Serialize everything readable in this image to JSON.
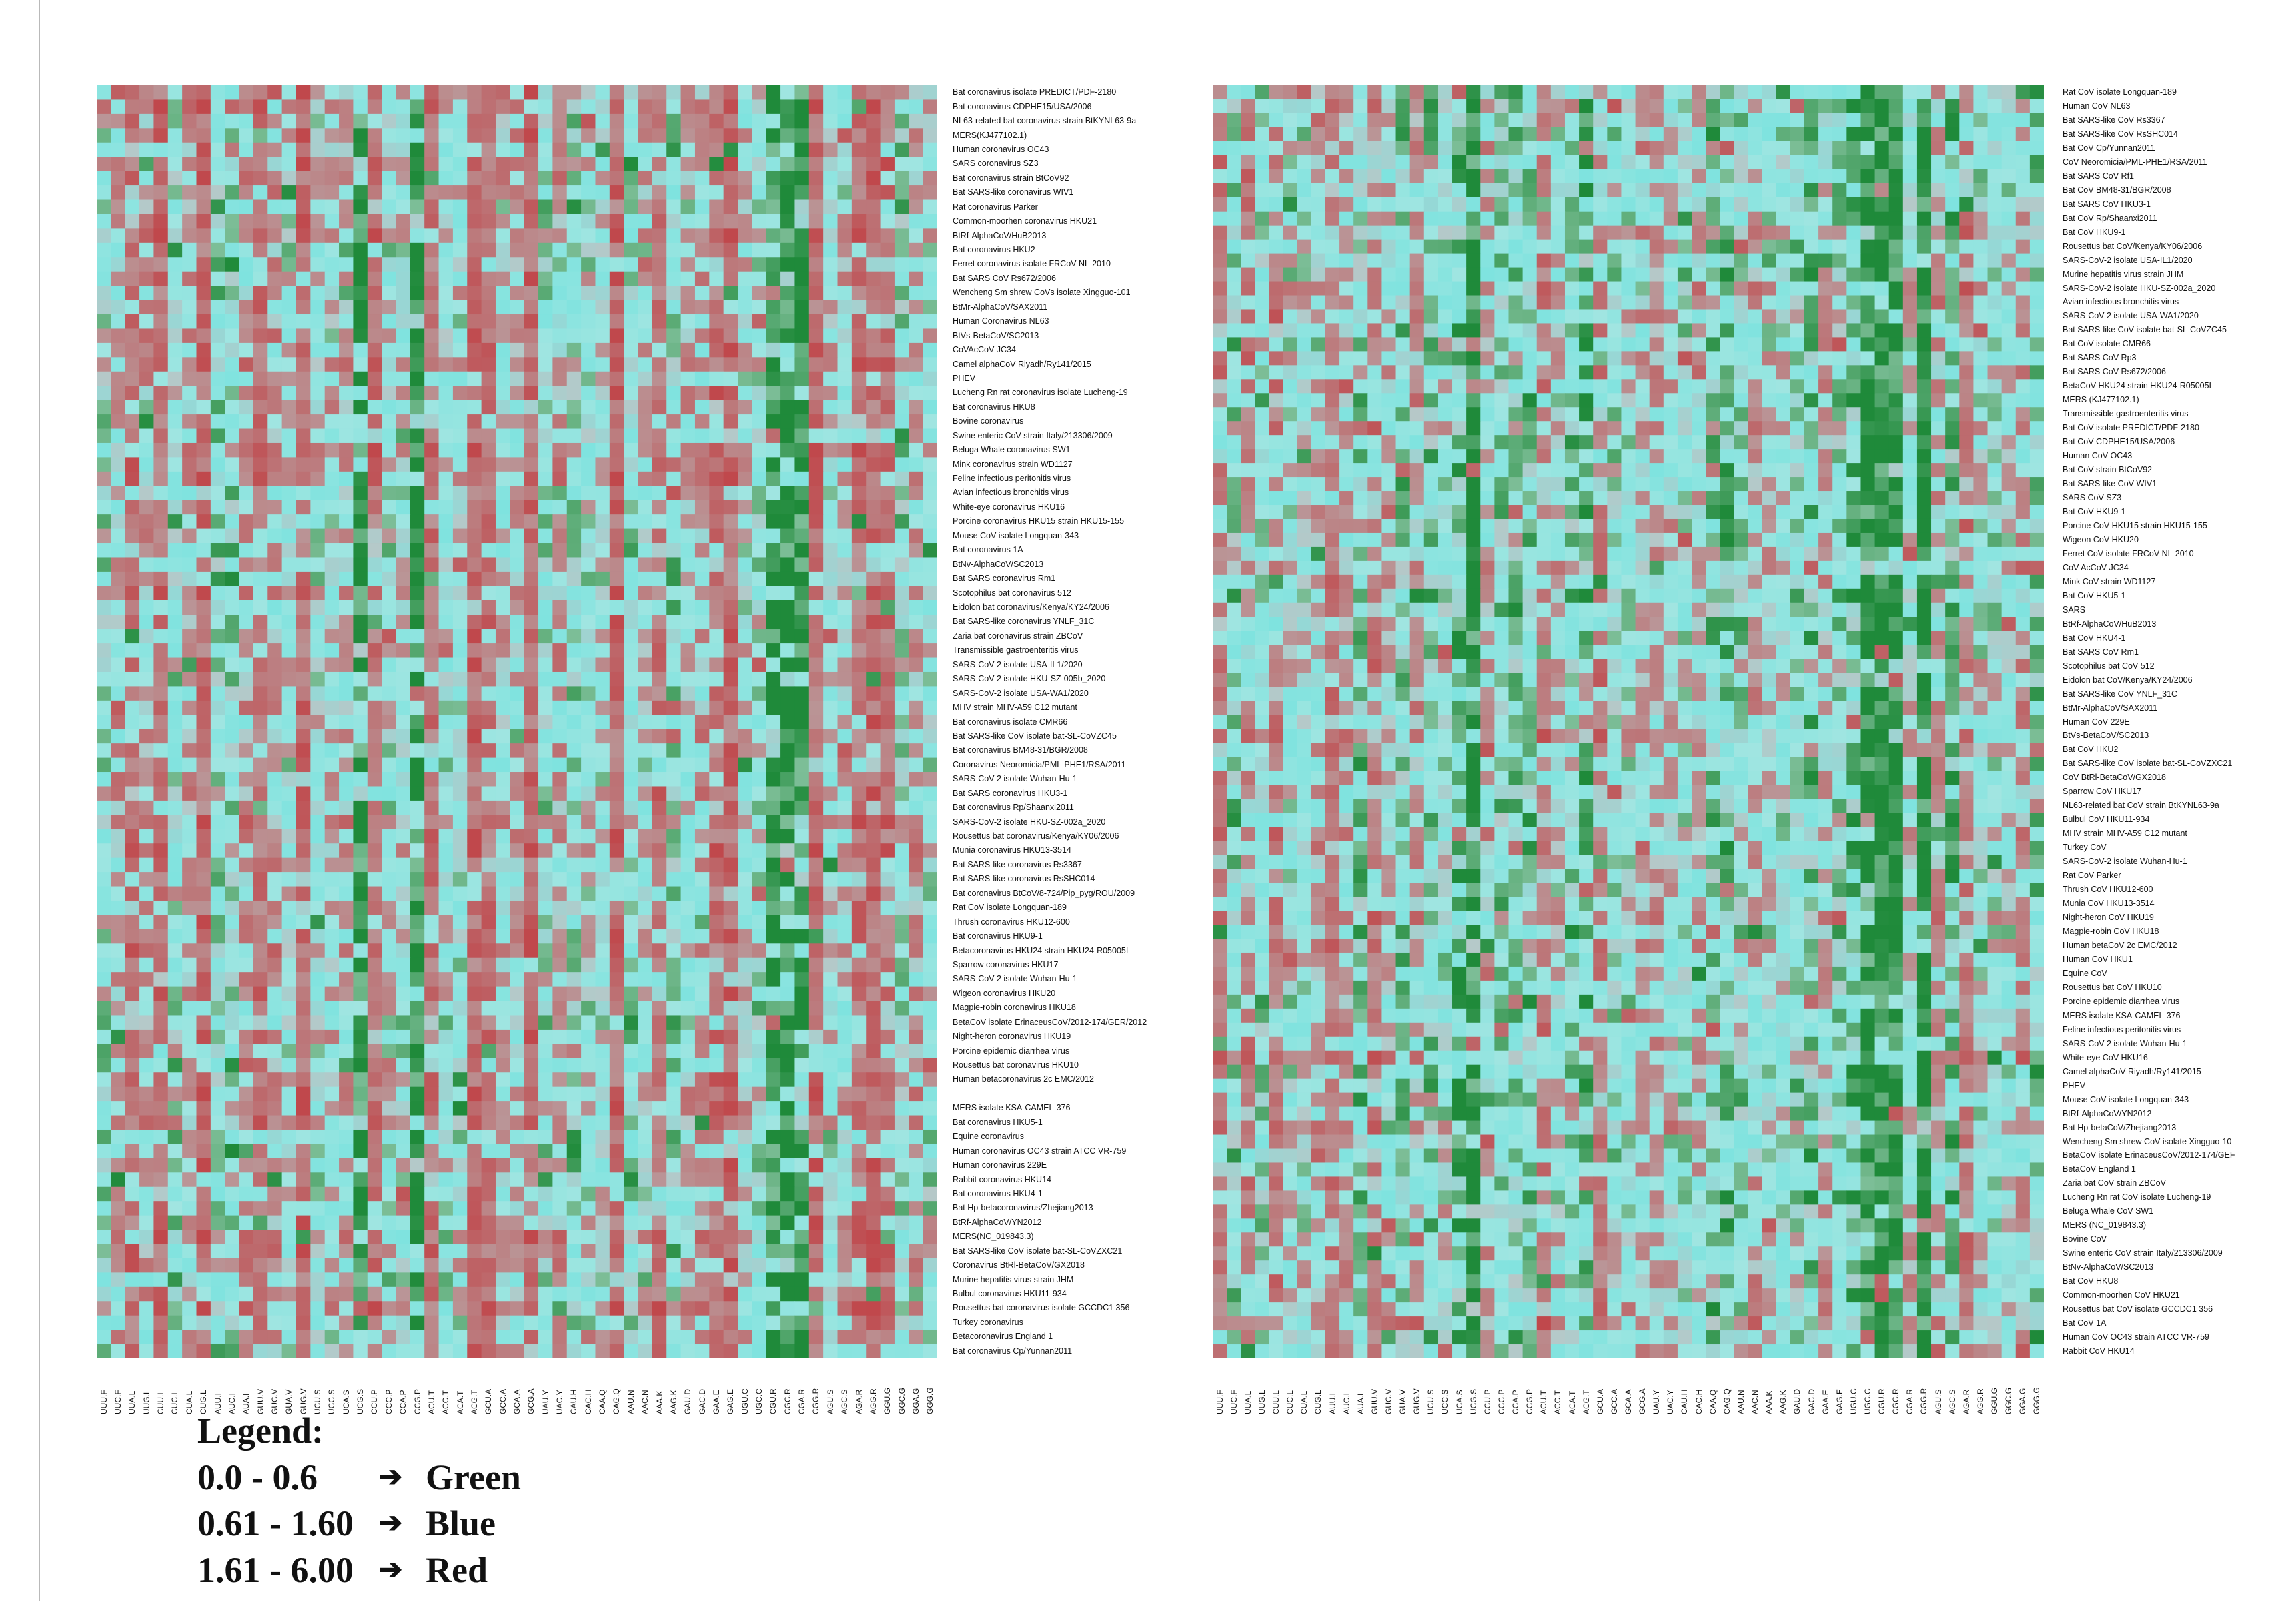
{
  "chart_data": [
    {
      "type": "heatmap",
      "id": "left",
      "rows": [
        "Bat coronavirus isolate PREDICT/PDF-2180",
        "Bat coronavirus CDPHE15/USA/2006",
        "NL63-related bat coronavirus strain BtKYNL63-9a",
        " MERS(KJ477102.1)",
        "Human coronavirus OC43",
        "SARS coronavirus SZ3",
        "Bat coronavirus strain BtCoV92",
        "Bat SARS-like coronavirus WIV1",
        " Rat coronavirus Parker",
        "Common-moorhen coronavirus HKU21",
        "BtRf-AlphaCoV/HuB2013",
        "Bat coronavirus HKU2",
        "Ferret coronavirus isolate FRCoV-NL-2010",
        " Bat SARS CoV Rs672/2006",
        " Wencheng Sm shrew CoVs isolate Xingguo-101",
        "BtMr-AlphaCoV/SAX2011",
        " Human Coronavirus NL63",
        "BtVs-BetaCoV/SC2013",
        "CoVAcCoV-JC34",
        "Camel alphaCoV Riyadh/Ry141/2015",
        "PHEV",
        "Lucheng Rn rat coronavirus isolate Lucheng-19",
        "Bat coronavirus HKU8",
        " Bovine coronavirus",
        "Swine enteric CoV strain Italy/213306/2009",
        "Beluga Whale coronavirus SW1",
        " Mink coronavirus strain WD1127",
        "Feline infectious peritonitis virus",
        "Avian infectious bronchitis virus",
        " White-eye coronavirus HKU16",
        " Porcine coronavirus HKU15 strain HKU15-155",
        "Mouse CoV isolate Longquan-343",
        "Bat coronavirus 1A",
        " BtNv-AlphaCoV/SC2013",
        "Bat SARS coronavirus Rm1",
        "Scotophilus bat coronavirus 512",
        " Eidolon bat coronavirus/Kenya/KY24/2006",
        "Bat SARS-like coronavirus YNLF_31C",
        "Zaria bat coronavirus strain ZBCoV",
        "Transmissible gastroenteritis virus",
        "SARS-CoV-2 isolate USA-IL1/2020",
        "SARS-CoV-2 isolate  HKU-SZ-005b_2020",
        "SARS-CoV-2 isolate USA-WA1/2020",
        "MHV strain MHV-A59 C12 mutant",
        "Bat coronavirus isolate CMR66",
        "Bat SARS-like CoV isolate bat-SL-CoVZC45",
        " Bat coronavirus BM48-31/BGR/2008",
        "Coronavirus Neoromicia/PML-PHE1/RSA/2011",
        "SARS-CoV-2 isolate Wuhan-Hu-1",
        " Bat SARS coronavirus HKU3-1",
        "Bat coronavirus Rp/Shaanxi2011",
        "SARS-CoV-2 isolate HKU-SZ-002a_2020",
        "Rousettus bat coronavirus/Kenya/KY06/2006",
        " Munia coronavirus HKU13-3514",
        "Bat SARS-like coronavirus Rs3367",
        "Bat SARS-like coronavirus RsSHC014",
        "Bat coronavirus BtCoV/8-724/Pip_pyg/ROU/2009",
        "Rat CoV isolate Longquan-189",
        "Thrush coronavirus HKU12-600",
        "Bat coronavirus HKU9-1",
        "Betacoronavirus HKU24 strain HKU24-R05005I",
        "Sparrow coronavirus HKU17",
        "SARS-CoV-2  isolate Wuhan-Hu-1",
        " Wigeon coronavirus HKU20",
        " Magpie-robin coronavirus HKU18",
        "BetaCoV  isolate ErinaceusCoV/2012-174/GER/2012",
        "Night-heron coronavirus HKU19",
        " Porcine epidemic diarrhea virus",
        "Rousettus bat coronavirus HKU10",
        "Human betacoronavirus 2c EMC/2012",
        "",
        "MERS isolate KSA-CAMEL-376",
        " Bat coronavirus HKU5-1",
        "Equine coronavirus",
        "Human coronavirus OC43 strain ATCC VR-759",
        " Human coronavirus 229E",
        "Rabbit coronavirus HKU14",
        "Bat coronavirus HKU4-1",
        "Bat Hp-betacoronavirus/Zhejiang2013",
        " BtRf-AlphaCoV/YN2012",
        "MERS(NC_019843.3)",
        " Bat SARS-like CoV isolate bat-SL-CoVZXC21",
        "Coronavirus BtRl-BetaCoV/GX2018",
        "Murine hepatitis virus strain JHM",
        " Bulbul coronavirus HKU11-934",
        "Rousettus bat coronavirus isolate GCCDC1 356",
        "Turkey coronavirus",
        "Betacoronavirus England 1",
        "Bat coronavirus Cp/Yunnan2011"
      ],
      "columns": [
        "UUU.F",
        "UUC.F",
        "UUA.L",
        "UUG.L",
        "CUU.L",
        "CUC.L",
        "CUA.L",
        "CUG.L",
        "AUU.I",
        "AUC.I",
        "AUA.I",
        "GUU.V",
        "GUC.V",
        "GUA.V",
        "GUG.V",
        "UCU.S",
        "UCC.S",
        "UCA.S",
        "UCG.S",
        "CCU.P",
        "CCC.P",
        "CCA.P",
        "CCG.P",
        "ACU.T",
        "ACC.T",
        "ACA.T",
        "ACG.T",
        "GCU.A",
        "GCC.A",
        "GCA.A",
        "GCG.A",
        "UAU.Y",
        "UAC.Y",
        "CAU.H",
        "CAC.H",
        "CAA.Q",
        "CAG.Q",
        "AAU.N",
        "AAC.N",
        "AAA.K",
        "AAG.K",
        "GAU.D",
        "GAC.D",
        "GAA.E",
        "GAG.E",
        "UGU.C",
        "UGC.C",
        "CGU.R",
        "CGC.R",
        "CGA.R",
        "CGG.R",
        "AGU.S",
        "AGC.S",
        "AGA.R",
        "AGG.R",
        "GGU.G",
        "GGC.G",
        "GGA.G",
        "GGG.G"
      ],
      "values_note_scale": "RSCU"
    },
    {
      "type": "heatmap",
      "id": "right",
      "rows": [
        "Rat CoV isolate Longquan-189",
        " Human CoV NL63",
        "Bat SARS-like CoV Rs3367",
        "Bat SARS-like CoV RsSHC014",
        "Bat CoV Cp/Yunnan2011",
        "CoV Neoromicia/PML-PHE1/RSA/2011",
        " Bat SARS CoV Rf1",
        " Bat CoV BM48-31/BGR/2008",
        " Bat SARS CoV HKU3-1",
        " Bat CoV Rp/Shaanxi2011",
        "Bat CoV HKU9-1",
        " Rousettus bat CoV/Kenya/KY06/2006",
        " SARS-CoV-2 isolate USA-IL1/2020",
        "Murine hepatitis virus strain JHM",
        "SARS-CoV-2 isolate HKU-SZ-002a_2020",
        "Avian infectious bronchitis virus",
        "SARS-CoV-2 isolate USA-WA1/2020",
        "Bat SARS-like CoV isolate bat-SL-CoVZC45",
        "Bat CoV isolate CMR66",
        "Bat SARS CoV Rp3",
        " Bat SARS CoV Rs672/2006",
        "BetaCoV HKU24 strain HKU24-R05005I",
        " MERS (KJ477102.1)",
        "Transmissible gastroenteritis virus",
        "Bat CoV isolate PREDICT/PDF-2180",
        "Bat CoV CDPHE15/USA/2006",
        "Human CoV OC43",
        "Bat CoV strain BtCoV92",
        "Bat SARS-like CoV WIV1",
        "SARS CoV SZ3",
        "Bat CoV HKU9-1",
        " Porcine CoV HKU15 strain HKU15-155",
        " Wigeon CoV HKU20",
        "Ferret CoV isolate FRCoV-NL-2010",
        "CoV AcCoV-JC34",
        " Mink CoV strain WD1127",
        " Bat CoV HKU5-1",
        "SARS",
        "BtRf-AlphaCoV/HuB2013",
        "Bat CoV HKU4-1",
        "Bat SARS CoV Rm1",
        "Scotophilus bat CoV 512",
        " Eidolon bat CoV/Kenya/KY24/2006",
        "Bat SARS-like CoV YNLF_31C",
        "BtMr-AlphaCoV/SAX2011",
        " Human CoV 229E",
        "BtVs-BetaCoV/SC2013",
        "Bat CoV HKU2",
        " Bat SARS-like CoV isolate bat-SL-CoVZXC21",
        "CoV BtRl-BetaCoV/GX2018",
        "Sparrow CoV HKU17",
        "NL63-related bat CoV strain BtKYNL63-9a",
        " Bulbul CoV HKU11-934",
        "MHV strain MHV-A59 C12 mutant",
        "Turkey CoV",
        "SARS-CoV-2 isolate Wuhan-Hu-1",
        " Rat CoV Parker",
        "Thrush CoV HKU12-600",
        "Munia CoV HKU13-3514",
        "Night-heron CoV HKU19",
        " Magpie-robin CoV HKU18",
        "Human betaCoV 2c EMC/2012",
        " Human CoV HKU1",
        "Equine CoV",
        "Rousettus bat CoV HKU10",
        " Porcine epidemic diarrhea virus",
        " MERS isolate KSA-CAMEL-376",
        "Feline infectious peritonitis virus",
        "SARS-CoV-2 isolate Wuhan-Hu-1",
        " White-eye CoV HKU16",
        "Camel alphaCoV Riyadh/Ry141/2015",
        "PHEV",
        "Mouse CoV isolate Longquan-343",
        " BtRf-AlphaCoV/YN2012",
        "Bat Hp-betaCoV/Zhejiang2013",
        " Wencheng Sm shrew CoV isolate Xingguo-10",
        "BetaCoV  isolate ErinaceusCoV/2012-174/GEF",
        "BetaCoV England 1",
        "Zaria bat CoV strain ZBCoV",
        "Lucheng Rn rat CoV isolate Lucheng-19",
        "Beluga Whale CoV SW1",
        "MERS (NC_019843.3)",
        " Bovine CoV",
        "Swine enteric CoV strain Italy/213306/2009",
        " BtNv-AlphaCoV/SC2013",
        "Bat CoV HKU8",
        "Common-moorhen CoV HKU21",
        "Rousettus bat CoV isolate GCCDC1 356",
        "Bat CoV 1A",
        "Human CoV OC43 strain ATCC VR-759",
        "Rabbit CoV HKU14"
      ],
      "columns": [
        "UUU.F",
        "UUC.F",
        "UUA.L",
        "UUG.L",
        "CUU.L",
        "CUC.L",
        "CUA.L",
        "CUG.L",
        "AUU.I",
        "AUC.I",
        "AUA.I",
        "GUU.V",
        "GUC.V",
        "GUA.V",
        "GUG.V",
        "UCU.S",
        "UCC.S",
        "UCA.S",
        "UCG.S",
        "CCU.P",
        "CCC.P",
        "CCA.P",
        "CCG.P",
        "ACU.T",
        "ACC.T",
        "ACA.T",
        "ACG.T",
        "GCU.A",
        "GCC.A",
        "GCA.A",
        "GCG.A",
        "UAU.Y",
        "UAC.Y",
        "CAU.H",
        "CAC.H",
        "CAA.Q",
        "CAG.Q",
        "AAU.N",
        "AAC.N",
        "AAA.K",
        "AAG.K",
        "GAU.D",
        "GAC.D",
        "GAA.E",
        "GAG.E",
        "UGU.C",
        "UGC.C",
        "CGU.R",
        "CGC.R",
        "CGA.R",
        "CGG.R",
        "AGU.S",
        "AGC.S",
        "AGA.R",
        "AGG.R",
        "GGU.G",
        "GGC.G",
        "GGA.G",
        "GGG.G"
      ]
    }
  ],
  "legend": {
    "title": "Legend:",
    "items": [
      {
        "range": "0.0   - 0.6",
        "arrow": "➔",
        "label": "Green",
        "color": "#1f8a3a"
      },
      {
        "range": "0.61 - 1.60",
        "arrow": "➔",
        "label": "Blue",
        "color": "#7fe3df"
      },
      {
        "range": "1.61 - 6.00",
        "arrow": "➔",
        "label": "Red",
        "color": "#c0484c"
      }
    ]
  },
  "colors": {
    "green": "#1f8a3a",
    "blue": "#7fe3df",
    "red": "#c0484c",
    "grey": "#b6c8c8",
    "pale": "#c9e8e3"
  }
}
